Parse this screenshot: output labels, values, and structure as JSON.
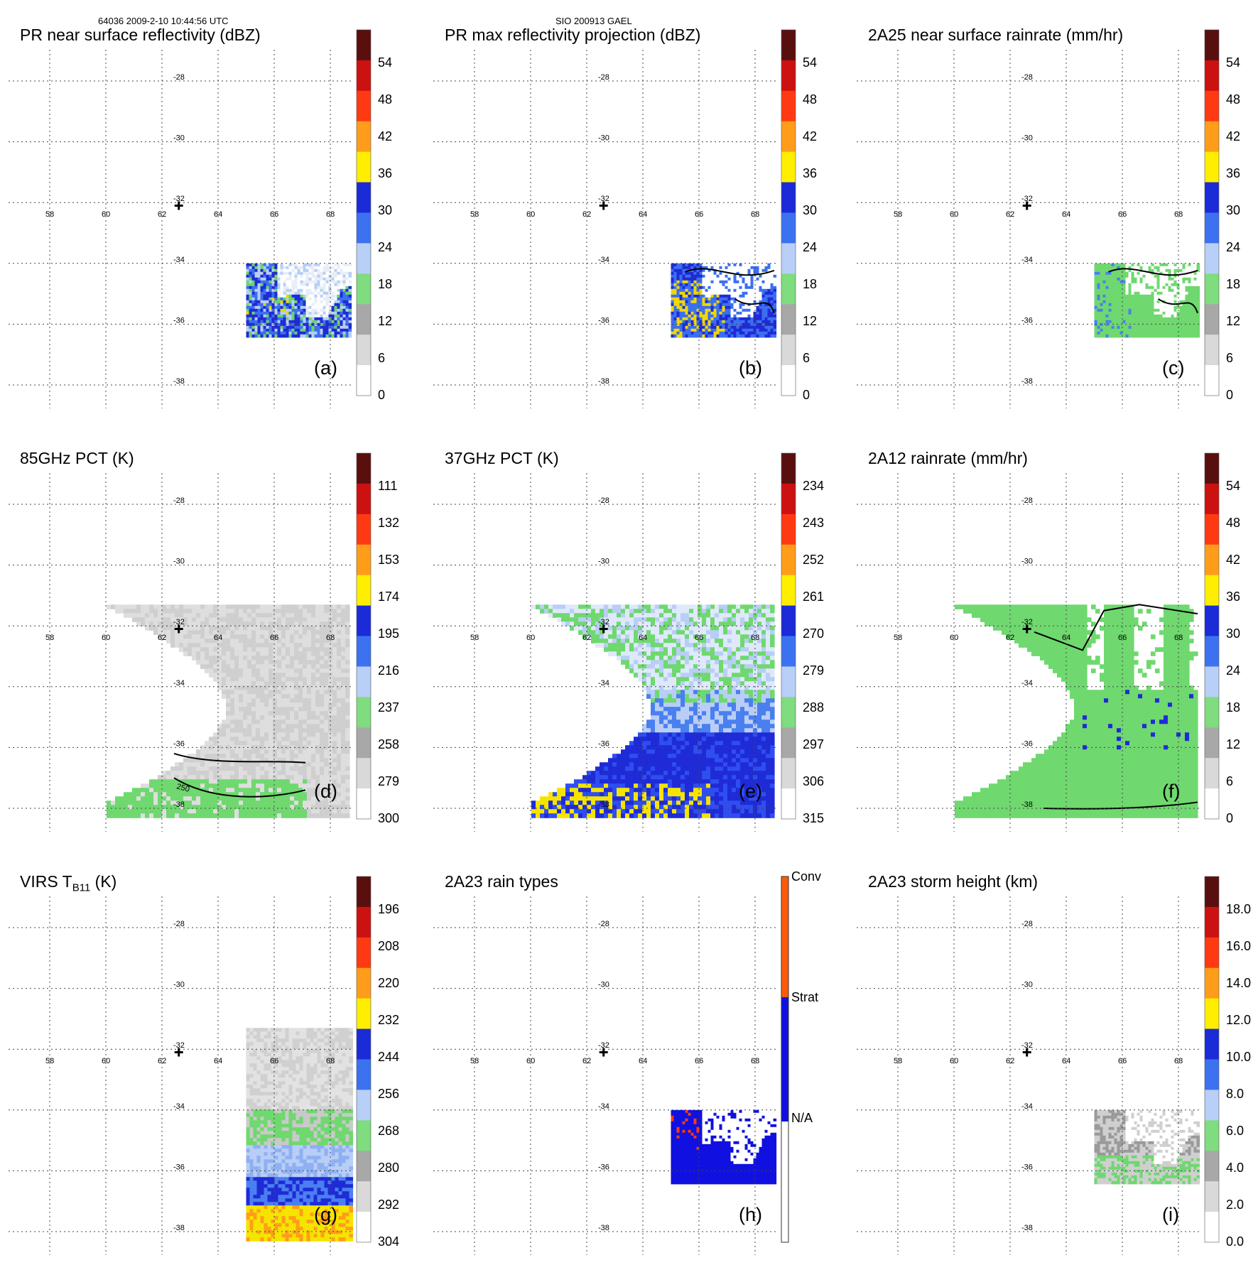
{
  "header": {
    "left": "64036 2009-2-10 10:44:56 UTC",
    "center": "SIO 200913 GAEL"
  },
  "map": {
    "lon_ticks": [
      "58",
      "60",
      "62",
      "64",
      "66",
      "68"
    ],
    "lat_ticks": [
      "-28",
      "-30",
      "-32",
      "-34",
      "-36",
      "-38"
    ]
  },
  "colors": {
    "grid": "#444444",
    "green": "#6fd86f",
    "blue_dark": "#1f2bd6",
    "blue_mid": "#4a7ff0",
    "blue_light": "#b9cdf7",
    "yellow": "#f5e400",
    "white": "#ffffff",
    "gray": "#bdbdbd",
    "conv": "#ff5a0a",
    "strat": "#1010e0"
  },
  "chart_data": [
    {
      "id": "a",
      "type": "heatmap",
      "title": "PR near surface reflectivity (dBZ)",
      "label": "(a)",
      "colorbar_ticks": [
        "54",
        "48",
        "42",
        "36",
        "30",
        "24",
        "18",
        "12",
        "6",
        "0"
      ]
    },
    {
      "id": "b",
      "type": "heatmap",
      "title": "PR max reflectivity projection (dBZ)",
      "label": "(b)",
      "colorbar_ticks": [
        "54",
        "48",
        "42",
        "36",
        "30",
        "24",
        "18",
        "12",
        "6",
        "0"
      ]
    },
    {
      "id": "c",
      "type": "heatmap",
      "title": "2A25 near surface rainrate (mm/hr)",
      "label": "(c)",
      "colorbar_ticks": [
        "54",
        "48",
        "42",
        "36",
        "30",
        "24",
        "18",
        "12",
        "6",
        "0"
      ]
    },
    {
      "id": "d",
      "type": "heatmap",
      "title": "85GHz PCT (K)",
      "label": "(d)",
      "colorbar_ticks": [
        "111",
        "132",
        "153",
        "174",
        "195",
        "216",
        "237",
        "258",
        "279",
        "300"
      ],
      "annotation": "250"
    },
    {
      "id": "e",
      "type": "heatmap",
      "title": "37GHz PCT (K)",
      "label": "(e)",
      "colorbar_ticks": [
        "234",
        "243",
        "252",
        "261",
        "270",
        "279",
        "288",
        "297",
        "306",
        "315"
      ]
    },
    {
      "id": "f",
      "type": "heatmap",
      "title": "2A12 rainrate (mm/hr)",
      "label": "(f)",
      "colorbar_ticks": [
        "54",
        "48",
        "42",
        "36",
        "30",
        "24",
        "18",
        "12",
        "6",
        "0"
      ]
    },
    {
      "id": "g",
      "type": "heatmap",
      "title_main": "VIRS T",
      "title_sub": "B11",
      "title_unit": "(K)",
      "label": "(g)",
      "colorbar_ticks": [
        "196",
        "208",
        "220",
        "232",
        "244",
        "256",
        "268",
        "280",
        "292",
        "304"
      ]
    },
    {
      "id": "h",
      "type": "heatmap",
      "title": "2A23 rain types",
      "label": "(h)",
      "categories": [
        "Conv",
        "Strat",
        "N/A"
      ]
    },
    {
      "id": "i",
      "type": "heatmap",
      "title": "2A23 storm height (km)",
      "label": "(i)",
      "colorbar_ticks": [
        "18.0",
        "16.0",
        "14.0",
        "12.0",
        "10.0",
        "8.0",
        "6.0",
        "4.0",
        "2.0",
        "0.0"
      ]
    }
  ]
}
